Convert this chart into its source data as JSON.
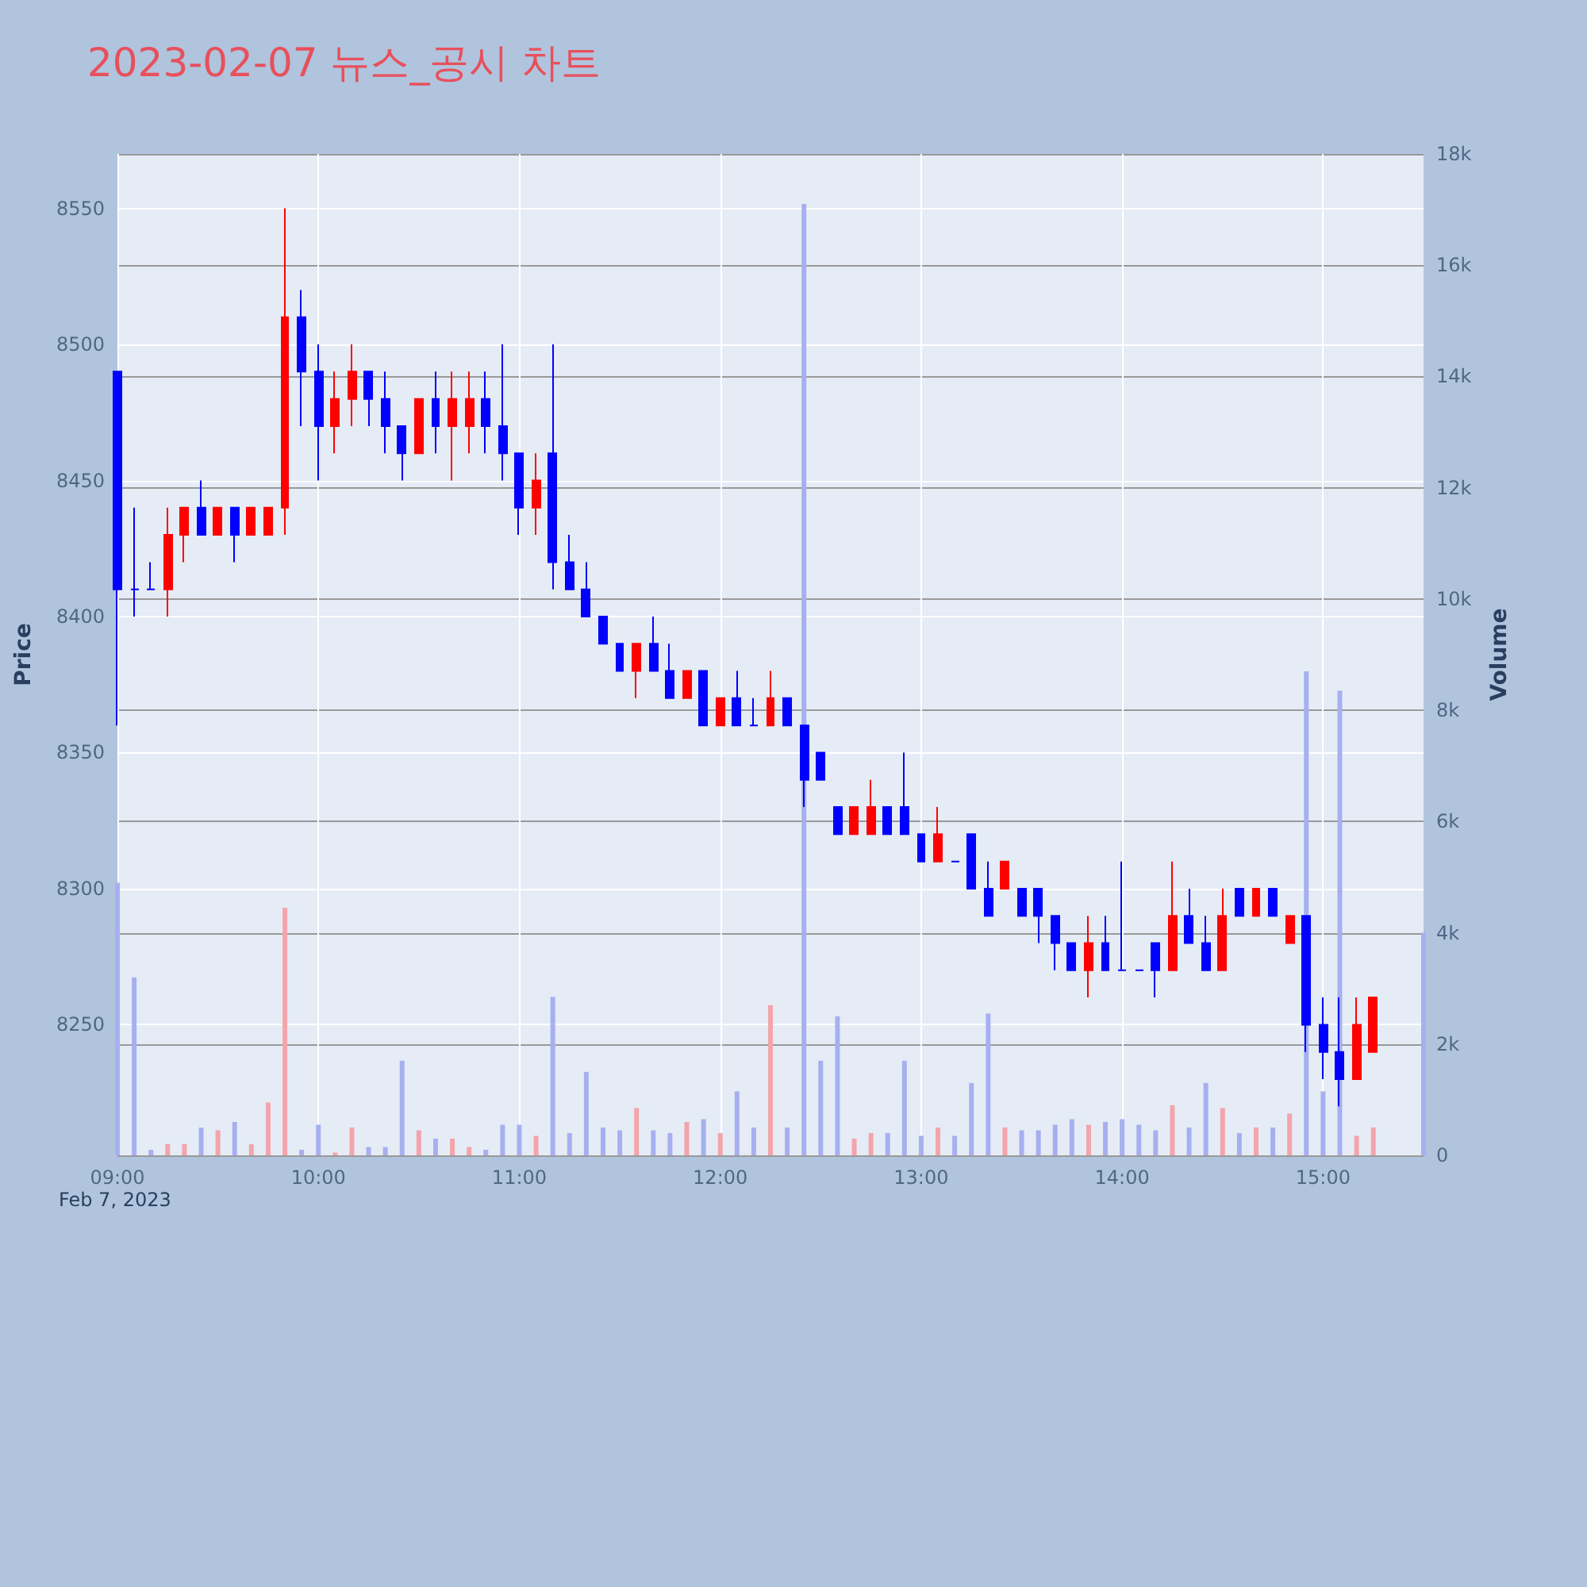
{
  "chart_data": {
    "type": "candlestick",
    "title": "2023-02-07 뉴스_공시 차트",
    "ylabel": "Price",
    "y2label": "Volume",
    "annotations": [
      "Feb 7, 2023"
    ],
    "grid": true,
    "x": [
      "2023-02-07T09:00",
      "2023-02-07T09:05",
      "2023-02-07T09:10",
      "2023-02-07T09:15",
      "2023-02-07T09:20",
      "2023-02-07T09:25",
      "2023-02-07T09:30",
      "2023-02-07T09:35",
      "2023-02-07T09:40",
      "2023-02-07T09:45",
      "2023-02-07T09:50",
      "2023-02-07T09:55",
      "2023-02-07T10:00",
      "2023-02-07T10:05",
      "2023-02-07T10:10",
      "2023-02-07T10:15",
      "2023-02-07T10:20",
      "2023-02-07T10:25",
      "2023-02-07T10:30",
      "2023-02-07T10:35",
      "2023-02-07T10:40",
      "2023-02-07T10:45",
      "2023-02-07T10:50",
      "2023-02-07T10:55",
      "2023-02-07T11:00",
      "2023-02-07T11:05",
      "2023-02-07T11:10",
      "2023-02-07T11:15",
      "2023-02-07T11:20",
      "2023-02-07T11:25",
      "2023-02-07T11:30",
      "2023-02-07T11:35",
      "2023-02-07T11:40",
      "2023-02-07T11:45",
      "2023-02-07T11:50",
      "2023-02-07T11:55",
      "2023-02-07T12:00",
      "2023-02-07T12:05",
      "2023-02-07T12:10",
      "2023-02-07T12:15",
      "2023-02-07T12:20",
      "2023-02-07T12:25",
      "2023-02-07T12:30",
      "2023-02-07T12:35",
      "2023-02-07T12:40",
      "2023-02-07T12:45",
      "2023-02-07T12:50",
      "2023-02-07T12:55",
      "2023-02-07T13:00",
      "2023-02-07T13:05",
      "2023-02-07T13:10",
      "2023-02-07T13:15",
      "2023-02-07T13:20",
      "2023-02-07T13:25",
      "2023-02-07T13:30",
      "2023-02-07T13:35",
      "2023-02-07T13:40",
      "2023-02-07T13:45",
      "2023-02-07T13:50",
      "2023-02-07T13:55",
      "2023-02-07T14:00",
      "2023-02-07T14:05",
      "2023-02-07T14:10",
      "2023-02-07T14:15",
      "2023-02-07T14:20",
      "2023-02-07T14:25",
      "2023-02-07T14:30",
      "2023-02-07T14:35",
      "2023-02-07T14:40",
      "2023-02-07T14:45",
      "2023-02-07T14:50",
      "2023-02-07T14:55",
      "2023-02-07T15:00",
      "2023-02-07T15:05",
      "2023-02-07T15:10",
      "2023-02-07T15:15"
    ],
    "series": [
      {
        "colors": [
          "#0000ff",
          "#0000ff",
          "#0000ff",
          "#ff0000",
          "#ff0000",
          "#0000ff",
          "#ff0000",
          "#0000ff",
          "#ff0000",
          "#ff0000",
          "#ff0000",
          "#0000ff",
          "#0000ff",
          "#ff0000",
          "#ff0000",
          "#0000ff",
          "#0000ff",
          "#0000ff",
          "#ff0000",
          "#0000ff",
          "#ff0000",
          "#ff0000",
          "#0000ff",
          "#0000ff",
          "#0000ff",
          "#ff0000",
          "#0000ff",
          "#0000ff",
          "#0000ff",
          "#0000ff",
          "#0000ff",
          "#ff0000",
          "#0000ff",
          "#0000ff",
          "#ff0000",
          "#0000ff",
          "#ff0000",
          "#0000ff",
          "#0000ff",
          "#ff0000",
          "#0000ff",
          "#0000ff",
          "#0000ff",
          "#0000ff",
          "#ff0000",
          "#ff0000",
          "#0000ff",
          "#0000ff",
          "#0000ff",
          "#ff0000",
          "#0000ff",
          "#0000ff",
          "#0000ff",
          "#ff0000",
          "#0000ff",
          "#0000ff",
          "#0000ff",
          "#0000ff",
          "#ff0000",
          "#0000ff",
          "#0000ff",
          "#0000ff",
          "#0000ff",
          "#ff0000",
          "#0000ff",
          "#0000ff",
          "#ff0000",
          "#0000ff",
          "#ff0000",
          "#0000ff",
          "#ff0000",
          "#0000ff",
          "#0000ff",
          "#0000ff",
          "#ff0000",
          "#ff0000"
        ],
        "ohlc": [
          [
            8490,
            8490,
            8360,
            8410
          ],
          [
            8410,
            8440,
            8400,
            8410
          ],
          [
            8410,
            8420,
            8410,
            8410
          ],
          [
            8410,
            8440,
            8400,
            8430
          ],
          [
            8430,
            8440,
            8420,
            8440
          ],
          [
            8440,
            8450,
            8430,
            8430
          ],
          [
            8430,
            8440,
            8430,
            8440
          ],
          [
            8440,
            8440,
            8420,
            8430
          ],
          [
            8430,
            8440,
            8430,
            8440
          ],
          [
            8430,
            8440,
            8430,
            8440
          ],
          [
            8440,
            8550,
            8430,
            8510
          ],
          [
            8510,
            8520,
            8470,
            8490
          ],
          [
            8490,
            8500,
            8450,
            8470
          ],
          [
            8470,
            8490,
            8460,
            8480
          ],
          [
            8480,
            8500,
            8470,
            8490
          ],
          [
            8490,
            8490,
            8470,
            8480
          ],
          [
            8480,
            8490,
            8460,
            8470
          ],
          [
            8470,
            8470,
            8450,
            8460
          ],
          [
            8460,
            8480,
            8460,
            8480
          ],
          [
            8480,
            8490,
            8460,
            8470
          ],
          [
            8470,
            8490,
            8450,
            8480
          ],
          [
            8470,
            8490,
            8460,
            8480
          ],
          [
            8480,
            8490,
            8460,
            8470
          ],
          [
            8470,
            8500,
            8450,
            8460
          ],
          [
            8460,
            8460,
            8430,
            8440
          ],
          [
            8440,
            8460,
            8430,
            8450
          ],
          [
            8460,
            8500,
            8410,
            8420
          ],
          [
            8420,
            8430,
            8410,
            8410
          ],
          [
            8410,
            8420,
            8400,
            8400
          ],
          [
            8400,
            8400,
            8390,
            8390
          ],
          [
            8390,
            8390,
            8380,
            8380
          ],
          [
            8380,
            8390,
            8370,
            8390
          ],
          [
            8390,
            8400,
            8380,
            8380
          ],
          [
            8380,
            8390,
            8370,
            8370
          ],
          [
            8370,
            8380,
            8370,
            8380
          ],
          [
            8380,
            8380,
            8360,
            8360
          ],
          [
            8360,
            8370,
            8360,
            8370
          ],
          [
            8370,
            8380,
            8360,
            8360
          ],
          [
            8360,
            8370,
            8360,
            8360
          ],
          [
            8360,
            8380,
            8360,
            8370
          ],
          [
            8370,
            8370,
            8360,
            8360
          ],
          [
            8360,
            8360,
            8330,
            8340
          ],
          [
            8350,
            8350,
            8340,
            8340
          ],
          [
            8330,
            8330,
            8320,
            8320
          ],
          [
            8320,
            8330,
            8320,
            8330
          ],
          [
            8320,
            8340,
            8320,
            8330
          ],
          [
            8330,
            8330,
            8320,
            8320
          ],
          [
            8330,
            8350,
            8320,
            8320
          ],
          [
            8320,
            8320,
            8310,
            8310
          ],
          [
            8310,
            8330,
            8310,
            8320
          ],
          [
            8310,
            8310,
            8310,
            8310
          ],
          [
            8320,
            8320,
            8300,
            8300
          ],
          [
            8300,
            8310,
            8290,
            8290
          ],
          [
            8300,
            8310,
            8300,
            8310
          ],
          [
            8300,
            8300,
            8290,
            8290
          ],
          [
            8300,
            8300,
            8280,
            8290
          ],
          [
            8290,
            8290,
            8270,
            8280
          ],
          [
            8280,
            8280,
            8270,
            8270
          ],
          [
            8270,
            8290,
            8260,
            8280
          ],
          [
            8280,
            8290,
            8270,
            8270
          ],
          [
            8270,
            8310,
            8270,
            8270
          ],
          [
            8270,
            8270,
            8270,
            8270
          ],
          [
            8280,
            8280,
            8260,
            8270
          ],
          [
            8270,
            8310,
            8270,
            8290
          ],
          [
            8290,
            8300,
            8280,
            8280
          ],
          [
            8280,
            8290,
            8270,
            8270
          ],
          [
            8270,
            8300,
            8270,
            8290
          ],
          [
            8300,
            8300,
            8290,
            8290
          ],
          [
            8290,
            8300,
            8290,
            8300
          ],
          [
            8300,
            8300,
            8290,
            8290
          ],
          [
            8280,
            8290,
            8280,
            8290
          ],
          [
            8290,
            8290,
            8240,
            8250
          ],
          [
            8250,
            8260,
            8230,
            8240
          ],
          [
            8240,
            8260,
            8220,
            8230
          ],
          [
            8230,
            8260,
            8230,
            8250
          ],
          [
            8240,
            8260,
            8240,
            8260
          ]
        ]
      },
      {
        "type": "bar",
        "axis": "y2",
        "x": [
          "2023-02-07T09:00",
          "2023-02-07T09:05",
          "2023-02-07T09:10",
          "2023-02-07T09:15",
          "2023-02-07T09:20",
          "2023-02-07T09:25",
          "2023-02-07T09:30",
          "2023-02-07T09:35",
          "2023-02-07T09:40",
          "2023-02-07T09:45",
          "2023-02-07T09:50",
          "2023-02-07T09:55",
          "2023-02-07T10:00",
          "2023-02-07T10:05",
          "2023-02-07T10:10",
          "2023-02-07T10:15",
          "2023-02-07T10:20",
          "2023-02-07T10:25",
          "2023-02-07T10:30",
          "2023-02-07T10:35",
          "2023-02-07T10:40",
          "2023-02-07T10:45",
          "2023-02-07T10:50",
          "2023-02-07T10:55",
          "2023-02-07T11:00",
          "2023-02-07T11:05",
          "2023-02-07T11:10",
          "2023-02-07T11:15",
          "2023-02-07T11:20",
          "2023-02-07T11:25",
          "2023-02-07T11:30",
          "2023-02-07T11:35",
          "2023-02-07T11:40",
          "2023-02-07T11:45",
          "2023-02-07T11:50",
          "2023-02-07T11:55",
          "2023-02-07T12:00",
          "2023-02-07T12:05",
          "2023-02-07T12:10",
          "2023-02-07T12:15",
          "2023-02-07T12:20",
          "2023-02-07T12:25",
          "2023-02-07T12:30",
          "2023-02-07T12:35",
          "2023-02-07T12:40",
          "2023-02-07T12:45",
          "2023-02-07T12:50",
          "2023-02-07T12:55",
          "2023-02-07T13:00",
          "2023-02-07T13:05",
          "2023-02-07T13:10",
          "2023-02-07T13:15",
          "2023-02-07T13:20",
          "2023-02-07T13:25",
          "2023-02-07T13:30",
          "2023-02-07T13:35",
          "2023-02-07T13:40",
          "2023-02-07T13:45",
          "2023-02-07T13:50",
          "2023-02-07T13:55",
          "2023-02-07T14:00",
          "2023-02-07T14:05",
          "2023-02-07T14:10",
          "2023-02-07T14:15",
          "2023-02-07T14:20",
          "2023-02-07T14:25",
          "2023-02-07T14:30",
          "2023-02-07T14:35",
          "2023-02-07T14:40",
          "2023-02-07T14:45",
          "2023-02-07T14:50",
          "2023-02-07T14:55",
          "2023-02-07T15:00",
          "2023-02-07T15:05",
          "2023-02-07T15:10",
          "2023-02-07T15:15",
          "2023-02-07T15:30"
        ],
        "values": [
          4900,
          3200,
          100,
          200,
          200,
          500,
          450,
          600,
          200,
          950,
          4450,
          100,
          550,
          50,
          500,
          150,
          150,
          1700,
          450,
          300,
          300,
          150,
          100,
          550,
          550,
          350,
          2850,
          400,
          1500,
          500,
          450,
          850,
          450,
          400,
          600,
          650,
          400,
          1150,
          500,
          2700,
          500,
          17100,
          1700,
          2500,
          300,
          400,
          400,
          1700,
          350,
          500,
          350,
          1300,
          2550,
          500,
          450,
          450,
          550,
          650,
          550,
          600,
          650,
          550,
          450,
          900,
          500,
          1300,
          850,
          400,
          500,
          500,
          750,
          8700,
          1150,
          8350,
          350,
          500,
          4000
        ],
        "colors": [
          "#a6b0f0",
          "#a6b0f0",
          "#a6b0f0",
          "#f4a4ab",
          "#f4a4ab",
          "#a6b0f0",
          "#f4a4ab",
          "#a6b0f0",
          "#f4a4ab",
          "#f4a4ab",
          "#f4a4ab",
          "#a6b0f0",
          "#a6b0f0",
          "#f4a4ab",
          "#f4a4ab",
          "#a6b0f0",
          "#a6b0f0",
          "#a6b0f0",
          "#f4a4ab",
          "#a6b0f0",
          "#f4a4ab",
          "#f4a4ab",
          "#a6b0f0",
          "#a6b0f0",
          "#a6b0f0",
          "#f4a4ab",
          "#a6b0f0",
          "#a6b0f0",
          "#a6b0f0",
          "#a6b0f0",
          "#a6b0f0",
          "#f4a4ab",
          "#a6b0f0",
          "#a6b0f0",
          "#f4a4ab",
          "#a6b0f0",
          "#f4a4ab",
          "#a6b0f0",
          "#a6b0f0",
          "#f4a4ab",
          "#a6b0f0",
          "#a6b0f0",
          "#a6b0f0",
          "#a6b0f0",
          "#f4a4ab",
          "#f4a4ab",
          "#a6b0f0",
          "#a6b0f0",
          "#a6b0f0",
          "#f4a4ab",
          "#a6b0f0",
          "#a6b0f0",
          "#a6b0f0",
          "#f4a4ab",
          "#a6b0f0",
          "#a6b0f0",
          "#a6b0f0",
          "#a6b0f0",
          "#f4a4ab",
          "#a6b0f0",
          "#a6b0f0",
          "#a6b0f0",
          "#a6b0f0",
          "#f4a4ab",
          "#a6b0f0",
          "#a6b0f0",
          "#f4a4ab",
          "#a6b0f0",
          "#f4a4ab",
          "#a6b0f0",
          "#f4a4ab",
          "#a6b0f0",
          "#a6b0f0",
          "#a6b0f0",
          "#f4a4ab",
          "#f4a4ab",
          "#a6b0f0"
        ]
      }
    ],
    "xlim": [
      "2023-02-07T09:00",
      "2023-02-07T15:30"
    ],
    "xticks": [
      {
        "value": "2023-02-07T09:00",
        "label": "09:00"
      },
      {
        "value": "2023-02-07T10:00",
        "label": "10:00"
      },
      {
        "value": "2023-02-07T11:00",
        "label": "11:00"
      },
      {
        "value": "2023-02-07T12:00",
        "label": "12:00"
      },
      {
        "value": "2023-02-07T13:00",
        "label": "13:00"
      },
      {
        "value": "2023-02-07T14:00",
        "label": "14:00"
      },
      {
        "value": "2023-02-07T15:00",
        "label": "15:00"
      }
    ],
    "ylim": [
      8202,
      8570
    ],
    "yticks": [
      8250,
      8300,
      8350,
      8400,
      8450,
      8500,
      8550
    ],
    "y2lim": [
      0,
      18000
    ],
    "y2ticks": [
      0,
      {
        "value": 2000,
        "label": "2k"
      },
      {
        "value": 4000,
        "label": "4k"
      },
      {
        "value": 6000,
        "label": "6k"
      },
      {
        "value": 8000,
        "label": "8k"
      },
      {
        "value": 10000,
        "label": "10k"
      },
      {
        "value": 12000,
        "label": "12k"
      },
      {
        "value": 14000,
        "label": "14k"
      },
      {
        "value": 16000,
        "label": "16k"
      },
      {
        "value": 18000,
        "label": "18k"
      }
    ]
  }
}
